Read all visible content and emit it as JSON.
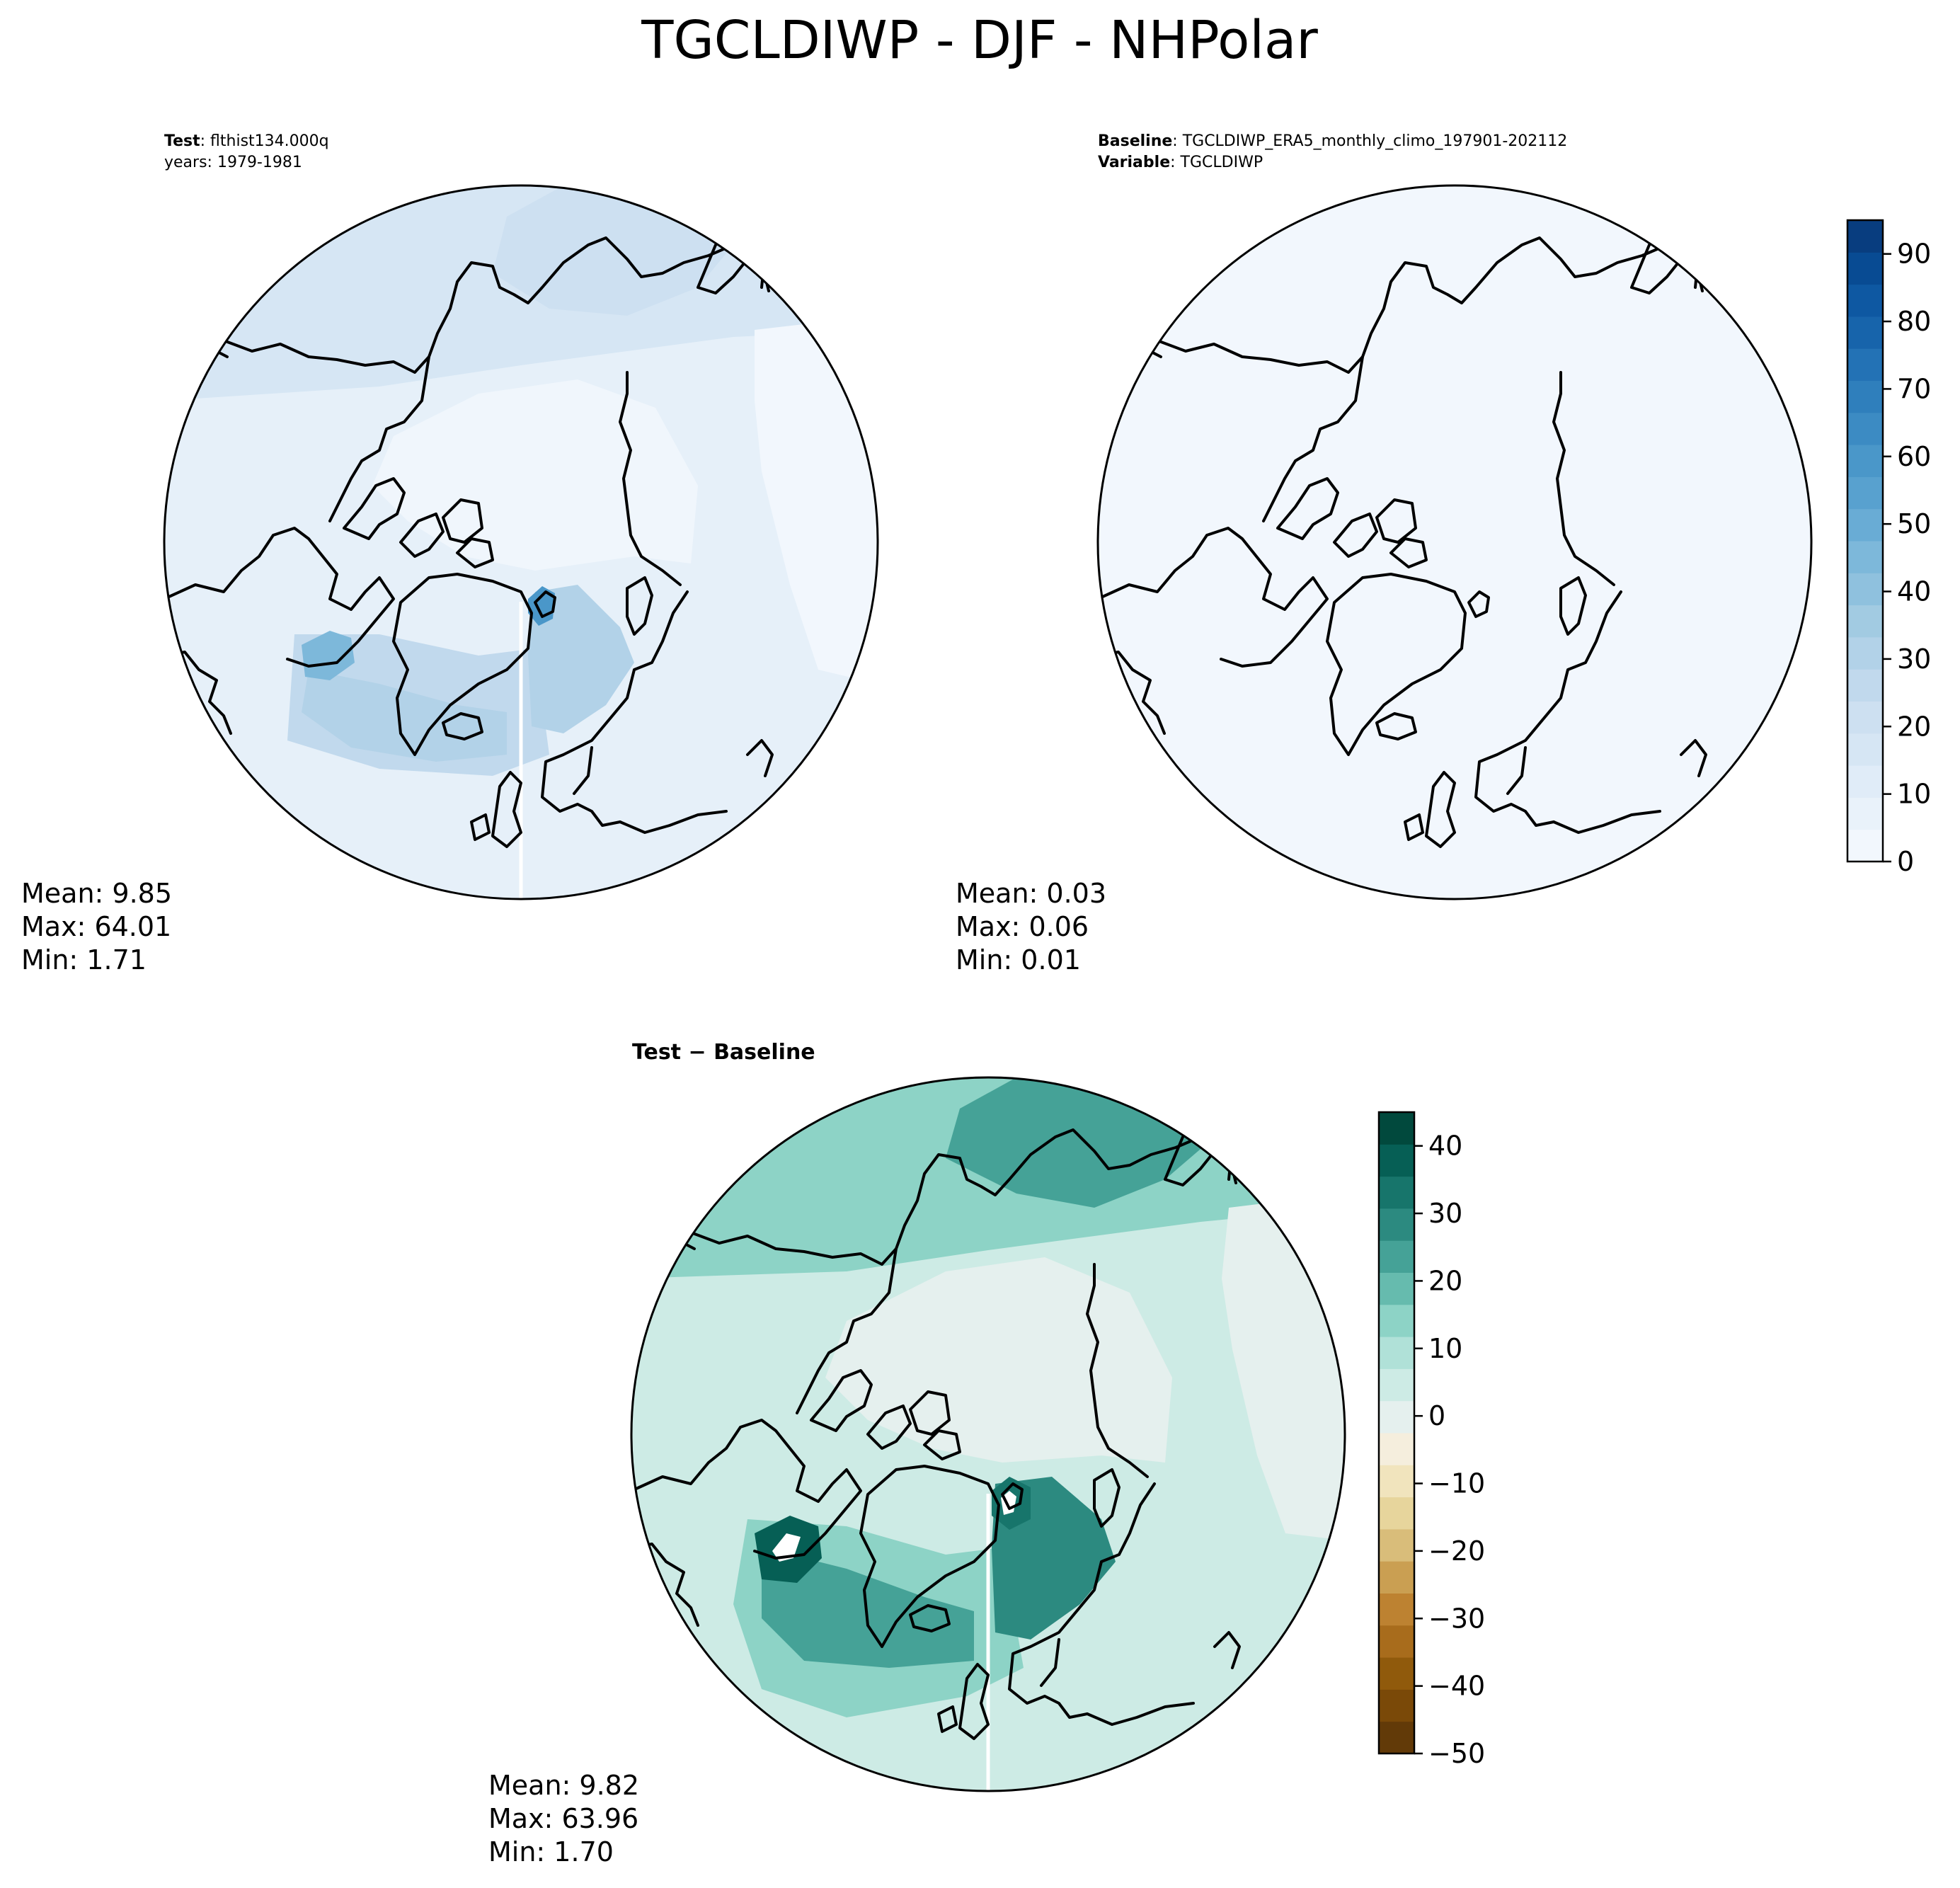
{
  "title": "TGCLDIWP - DJF - NHPolar",
  "panels": {
    "test": {
      "header_key_1": "Test",
      "header_val_1": ": flthist134.000q",
      "header_line_2": "years: 1979-1981",
      "stats": {
        "mean": "Mean:  9.85",
        "max": "Max: 64.01",
        "min": "Min:  1.71"
      }
    },
    "baseline": {
      "header_key_1": "Baseline",
      "header_val_1": ": TGCLDIWP_ERA5_monthly_climo_197901-202112",
      "header_key_2": "Variable",
      "header_val_2": ": TGCLDIWP",
      "stats": {
        "mean": "Mean:  0.03",
        "max": "Max:  0.06",
        "min": "Min:  0.01"
      }
    },
    "diff": {
      "title_left": "Test",
      "title_op": " − ",
      "title_right": "Baseline",
      "stats": {
        "mean": "Mean:  9.82",
        "max": "Max: 63.96",
        "min": "Min:  1.70"
      }
    }
  },
  "colorbars": {
    "top": {
      "cmap": "Blues",
      "vmin": 0,
      "vmax": 95,
      "step": 5,
      "ticks": [
        0,
        10,
        20,
        30,
        40,
        50,
        60,
        70,
        80,
        90
      ],
      "tick_labels": [
        "0",
        "10",
        "20",
        "30",
        "40",
        "50",
        "60",
        "70",
        "80",
        "90"
      ],
      "colors": [
        "#f2f7fd",
        "#e9f2fa",
        "#e0ecf8",
        "#d6e6f4",
        "#cde0f1",
        "#c1d9ed",
        "#b2d2e8",
        "#a2cbe2",
        "#8fc1de",
        "#7db8da",
        "#69acd5",
        "#58a1cf",
        "#4a97c9",
        "#3c8bc3",
        "#2f7fbc",
        "#2372b5",
        "#1764ab",
        "#0e58a2",
        "#084b93",
        "#083d7f"
      ]
    },
    "diff": {
      "cmap": "BrBG",
      "vmin": -50,
      "vmax": 45,
      "step": 5,
      "ticks": [
        -50,
        -40,
        -30,
        -20,
        -10,
        0,
        10,
        20,
        30,
        40
      ],
      "tick_labels": [
        "−50",
        "−40",
        "−30",
        "−20",
        "−10",
        "0",
        "10",
        "20",
        "30",
        "40"
      ],
      "colors": [
        "#623a08",
        "#7a4908",
        "#905a0c",
        "#a86c1c",
        "#bd8231",
        "#ca9f52",
        "#d9bd7a",
        "#e7d59c",
        "#f1e4bd",
        "#f5eedd",
        "#e5f0ee",
        "#cdebe5",
        "#b0e1d8",
        "#8dd3c6",
        "#66bbae",
        "#45a297",
        "#2c8a80",
        "#17756b",
        "#065f55",
        "#01493d"
      ]
    }
  },
  "fields": {
    "test": {
      "background": "#e6f0f9",
      "regions": [
        {
          "name": "pacific-north",
          "color": "#d6e6f4"
        },
        {
          "name": "pacific-core",
          "color": "#cde0f1"
        },
        {
          "name": "polar-cap",
          "color": "#f0f6fc"
        },
        {
          "name": "atlantic-broad",
          "color": "#c1d9ed"
        },
        {
          "name": "atlantic-core",
          "color": "#b2d2e8"
        },
        {
          "name": "labrador-max",
          "color": "#7db8da"
        },
        {
          "name": "svalbard-max",
          "color": "#4a97c9"
        },
        {
          "name": "barents",
          "color": "#b2d2e8"
        },
        {
          "name": "siberia-east",
          "color": "#f2f7fd"
        }
      ]
    },
    "baseline": {
      "background": "#f2f7fd"
    },
    "diff": {
      "background": "#cdebe5",
      "regions": [
        {
          "name": "pacific-north",
          "color": "#8dd3c6"
        },
        {
          "name": "pacific-core",
          "color": "#45a297"
        },
        {
          "name": "polar-cap",
          "color": "#e5f0ee"
        },
        {
          "name": "siberia-east",
          "color": "#e5f0ee"
        },
        {
          "name": "atlantic-broad",
          "color": "#8dd3c6"
        },
        {
          "name": "atlantic-core",
          "color": "#45a297"
        },
        {
          "name": "labrador-max",
          "color": "#065f55"
        },
        {
          "name": "svalbard-max",
          "color": "#17756b"
        },
        {
          "name": "barents",
          "color": "#2c8a80"
        }
      ]
    }
  }
}
